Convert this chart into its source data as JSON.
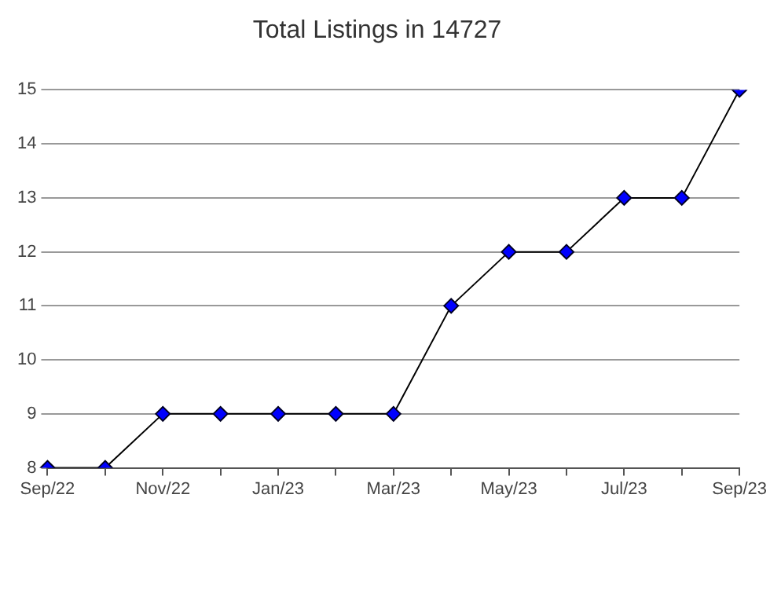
{
  "chart_data": {
    "type": "line",
    "title": "Total Listings in 14727",
    "categories": [
      "Sep/22",
      null,
      "Nov/22",
      null,
      "Jan/23",
      null,
      "Mar/23",
      null,
      "May/23",
      null,
      "Jul/23",
      null,
      "Sep/23"
    ],
    "series": [
      {
        "color": "#0000ff",
        "values": [
          8,
          8,
          9,
          9,
          9,
          9,
          9,
          11,
          12,
          12,
          13,
          13,
          15
        ]
      }
    ],
    "ylim": [
      8,
      15
    ],
    "yticks": [
      8,
      9,
      10,
      11,
      12,
      13,
      14,
      15
    ],
    "grid": "y",
    "legend": false,
    "marker": "diamond",
    "line_style": "solid"
  }
}
